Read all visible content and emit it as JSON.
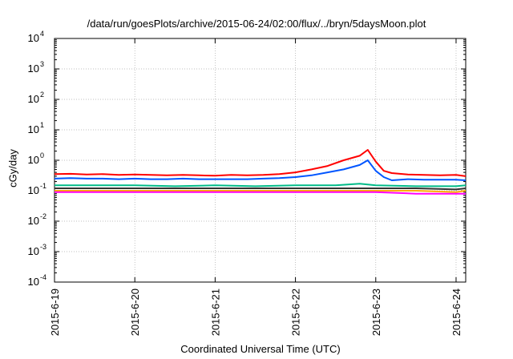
{
  "chart_data": {
    "type": "line",
    "title": "/data/run/goesPlots/archive/2015-06-24/02:00/flux/../bryn/5daysMoon.plot",
    "xlabel": "Coordinated Universal Time (UTC)",
    "ylabel": "cGy/day",
    "yscale": "log",
    "ylim": [
      0.0001,
      10000
    ],
    "xlim": [
      0,
      5.12
    ],
    "y_tick_labels": [
      {
        "base": "10",
        "exp": "-4"
      },
      {
        "base": "10",
        "exp": "-3"
      },
      {
        "base": "10",
        "exp": "-2"
      },
      {
        "base": "10",
        "exp": "-1"
      },
      {
        "base": "10",
        "exp": "0"
      },
      {
        "base": "10",
        "exp": "1"
      },
      {
        "base": "10",
        "exp": "2"
      },
      {
        "base": "10",
        "exp": "3"
      },
      {
        "base": "10",
        "exp": "4"
      }
    ],
    "x_ticks": [
      "2015-6-19",
      "2015-6-20",
      "2015-6-21",
      "2015-6-22",
      "2015-6-23",
      "2015-6-24"
    ],
    "grid": true,
    "series": [
      {
        "color": "#ff0000",
        "x": [
          0,
          0.2,
          0.4,
          0.6,
          0.8,
          1,
          1.2,
          1.4,
          1.6,
          1.8,
          2,
          2.2,
          2.4,
          2.6,
          2.8,
          3,
          3.2,
          3.4,
          3.6,
          3.8,
          3.9,
          4,
          4.1,
          4.2,
          4.4,
          4.6,
          4.8,
          5,
          5.12
        ],
        "y": [
          0.35,
          0.36,
          0.34,
          0.35,
          0.33,
          0.34,
          0.33,
          0.32,
          0.33,
          0.32,
          0.31,
          0.33,
          0.32,
          0.33,
          0.35,
          0.4,
          0.5,
          0.65,
          1.0,
          1.4,
          2.2,
          0.9,
          0.45,
          0.38,
          0.34,
          0.33,
          0.32,
          0.33,
          0.3
        ]
      },
      {
        "color": "#0055ff",
        "x": [
          0,
          0.2,
          0.4,
          0.6,
          0.8,
          1,
          1.2,
          1.4,
          1.6,
          1.8,
          2,
          2.2,
          2.4,
          2.6,
          2.8,
          3,
          3.2,
          3.4,
          3.6,
          3.8,
          3.9,
          4,
          4.1,
          4.2,
          4.4,
          4.6,
          4.8,
          5,
          5.12
        ],
        "y": [
          0.25,
          0.26,
          0.25,
          0.25,
          0.24,
          0.25,
          0.24,
          0.24,
          0.25,
          0.24,
          0.24,
          0.24,
          0.24,
          0.25,
          0.26,
          0.28,
          0.32,
          0.4,
          0.5,
          0.7,
          1.0,
          0.45,
          0.28,
          0.22,
          0.24,
          0.23,
          0.23,
          0.23,
          0.22
        ]
      },
      {
        "color": "#00bb88",
        "x": [
          0,
          0.5,
          1,
          1.5,
          2,
          2.5,
          3,
          3.5,
          3.8,
          4,
          4.5,
          5,
          5.12
        ],
        "y": [
          0.15,
          0.15,
          0.15,
          0.14,
          0.15,
          0.14,
          0.15,
          0.15,
          0.17,
          0.15,
          0.14,
          0.14,
          0.15
        ]
      },
      {
        "color": "#333333",
        "x": [
          0,
          0.5,
          1,
          1.5,
          2,
          2.5,
          3,
          3.5,
          4,
          4.5,
          5,
          5.12
        ],
        "y": [
          0.12,
          0.12,
          0.12,
          0.12,
          0.12,
          0.12,
          0.12,
          0.12,
          0.12,
          0.12,
          0.11,
          0.12
        ]
      },
      {
        "color": "#ffaa00",
        "x": [
          0,
          0.5,
          1,
          1.5,
          2,
          2.5,
          3,
          3.5,
          4,
          4.5,
          5,
          5.12
        ],
        "y": [
          0.1,
          0.1,
          0.1,
          0.1,
          0.1,
          0.1,
          0.1,
          0.1,
          0.1,
          0.1,
          0.09,
          0.1
        ]
      },
      {
        "color": "#ff00ff",
        "x": [
          0,
          0.5,
          1,
          1.5,
          2,
          2.5,
          3,
          3.5,
          4,
          4.5,
          5,
          5.12
        ],
        "y": [
          0.09,
          0.09,
          0.09,
          0.09,
          0.09,
          0.09,
          0.09,
          0.09,
          0.09,
          0.08,
          0.08,
          0.08
        ]
      }
    ]
  }
}
